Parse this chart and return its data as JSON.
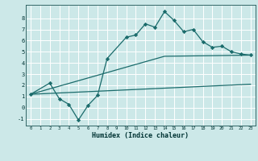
{
  "xlabel": "Humidex (Indice chaleur)",
  "bg_color": "#cce8e8",
  "line_color": "#1a6b6b",
  "grid_color": "#ffffff",
  "ylim": [
    -1.6,
    9.2
  ],
  "xlim": [
    -0.5,
    23.5
  ],
  "yticks": [
    -1,
    0,
    1,
    2,
    3,
    4,
    5,
    6,
    7,
    8
  ],
  "xticks": [
    0,
    1,
    2,
    3,
    4,
    5,
    6,
    7,
    8,
    9,
    10,
    11,
    12,
    13,
    14,
    15,
    16,
    17,
    18,
    19,
    20,
    21,
    22,
    23
  ],
  "line1_x": [
    0,
    2,
    3,
    4,
    5,
    6,
    7,
    8,
    10,
    11,
    12,
    13,
    14,
    15,
    16,
    17,
    18,
    19,
    20,
    21,
    22,
    23
  ],
  "line1_y": [
    1.2,
    2.2,
    0.8,
    0.3,
    -1.1,
    0.2,
    1.1,
    4.4,
    6.3,
    6.5,
    7.5,
    7.2,
    8.6,
    7.8,
    6.8,
    7.0,
    5.9,
    5.4,
    5.5,
    5.0,
    4.8,
    4.7
  ],
  "line2_x": [
    0,
    23
  ],
  "line2_y": [
    1.2,
    2.1
  ],
  "line3_x": [
    0,
    14,
    23
  ],
  "line3_y": [
    1.2,
    4.6,
    4.7
  ]
}
